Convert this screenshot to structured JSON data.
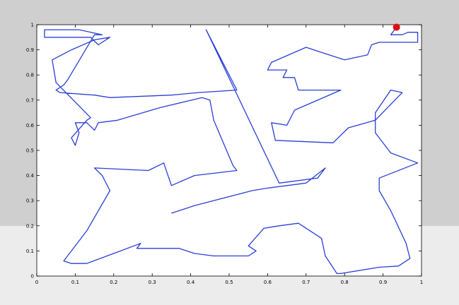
{
  "chart_data": {
    "type": "line",
    "title": "",
    "xlabel": "",
    "ylabel": "",
    "xlim": [
      0,
      1
    ],
    "ylim": [
      0,
      1
    ],
    "grid": false,
    "x_ticks": [
      0,
      0.1,
      0.2,
      0.3,
      0.4,
      0.5,
      0.6,
      0.7,
      0.8,
      0.9,
      1
    ],
    "x_tick_labels": [
      "0",
      "0.1",
      "0.2",
      "0.3",
      "0.4",
      "0.5",
      "0.6",
      "0.7",
      "0.8",
      "0.9",
      "1"
    ],
    "y_ticks": [
      0,
      0.1,
      0.2,
      0.3,
      0.4,
      0.5,
      0.6,
      0.7,
      0.8,
      0.9,
      1
    ],
    "y_tick_labels": [
      "0",
      "0.1",
      "0.2",
      "0.3",
      "0.4",
      "0.5",
      "0.6",
      "0.7",
      "0.8",
      "0.9",
      "1"
    ],
    "series": [
      {
        "color": "#2a3fd6",
        "x": [
          0.935,
          0.92,
          0.95,
          0.965,
          0.99,
          0.99,
          0.89,
          0.87,
          0.86,
          0.8,
          0.74,
          0.7,
          0.61,
          0.6,
          0.65,
          0.64,
          0.67,
          0.68,
          0.79,
          0.67,
          0.65,
          0.61,
          0.62,
          0.77,
          0.81,
          0.88,
          0.95,
          0.92,
          0.88,
          0.88,
          0.92,
          0.99,
          0.89,
          0.89,
          0.92,
          0.96,
          0.97,
          0.94,
          0.89,
          0.79,
          0.78,
          0.75,
          0.74,
          0.68,
          0.63,
          0.59,
          0.55,
          0.57,
          0.55,
          0.46,
          0.41,
          0.37,
          0.26,
          0.27,
          0.2,
          0.13,
          0.09,
          0.07,
          0.13,
          0.19,
          0.17,
          0.15,
          0.29,
          0.33,
          0.35,
          0.41,
          0.52,
          0.51,
          0.46,
          0.45,
          0.43,
          0.32,
          0.21,
          0.16,
          0.15,
          0.13,
          0.1,
          0.11,
          0.1,
          0.09,
          0.13,
          0.14,
          0.05,
          0.04,
          0.09,
          0.15,
          0.19,
          0.16,
          0.14,
          0.02,
          0.02,
          0.11,
          0.17,
          0.15,
          0.08,
          0.07,
          0.05,
          0.06,
          0.15,
          0.19,
          0.35,
          0.42,
          0.52,
          0.44,
          0.63,
          0.73,
          0.75,
          0.7,
          0.6,
          0.56,
          0.41,
          0.35
        ],
        "y": [
          0.99,
          0.96,
          0.96,
          0.97,
          0.97,
          0.93,
          0.93,
          0.92,
          0.88,
          0.86,
          0.89,
          0.91,
          0.85,
          0.82,
          0.82,
          0.79,
          0.79,
          0.74,
          0.74,
          0.66,
          0.6,
          0.61,
          0.54,
          0.53,
          0.59,
          0.62,
          0.73,
          0.74,
          0.65,
          0.57,
          0.49,
          0.45,
          0.39,
          0.34,
          0.26,
          0.13,
          0.07,
          0.04,
          0.035,
          0.01,
          0.01,
          0.08,
          0.15,
          0.21,
          0.2,
          0.19,
          0.12,
          0.1,
          0.08,
          0.08,
          0.09,
          0.11,
          0.11,
          0.13,
          0.09,
          0.05,
          0.05,
          0.06,
          0.18,
          0.34,
          0.4,
          0.43,
          0.42,
          0.45,
          0.36,
          0.4,
          0.42,
          0.44,
          0.62,
          0.7,
          0.71,
          0.67,
          0.62,
          0.61,
          0.58,
          0.61,
          0.61,
          0.57,
          0.52,
          0.55,
          0.62,
          0.63,
          0.77,
          0.86,
          0.9,
          0.94,
          0.95,
          0.92,
          0.95,
          0.95,
          0.98,
          0.98,
          0.96,
          0.96,
          0.78,
          0.76,
          0.74,
          0.73,
          0.72,
          0.71,
          0.72,
          0.73,
          0.74,
          0.98,
          0.37,
          0.39,
          0.43,
          0.37,
          0.35,
          0.34,
          0.28,
          0.25
        ]
      }
    ],
    "marker": {
      "x": 0.935,
      "y": 0.99,
      "color": "#e00b12"
    }
  }
}
